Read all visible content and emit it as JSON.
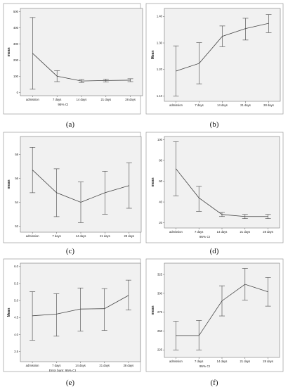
{
  "chart_data": [
    {
      "type": "line",
      "panel_label": "(a)",
      "x": [
        "admission",
        "7 days",
        "14 days",
        "21 days",
        "28 days"
      ],
      "series": [
        {
          "values": [
            242,
            101,
            71,
            74,
            76
          ],
          "ci_lower": [
            20,
            67,
            62,
            65,
            67
          ],
          "ci_upper": [
            464,
            135,
            80,
            83,
            85
          ]
        }
      ],
      "xlabel": "95% CI",
      "ylabel": "mean",
      "ylim": [
        -20,
        520
      ],
      "yticks": [
        0,
        100,
        200,
        300,
        400,
        500
      ],
      "ytick_labels": [
        "0",
        "100",
        "200",
        "300",
        "400",
        "500"
      ],
      "colors": {
        "line": "#444444",
        "plot_bg": "#f1f1f1"
      }
    },
    {
      "type": "line",
      "panel_label": "(b)",
      "x": [
        "admission",
        "7 days",
        "14 days",
        "21 days",
        "28 days"
      ],
      "series": [
        {
          "values": [
            1.194,
            1.223,
            1.325,
            1.354,
            1.374
          ],
          "ci_lower": [
            1.1,
            1.146,
            1.286,
            1.311,
            1.339
          ],
          "ci_upper": [
            1.289,
            1.301,
            1.364,
            1.393,
            1.407
          ]
        }
      ],
      "xlabel": "",
      "ylabel": "Mean",
      "ylim": [
        1.08,
        1.43
      ],
      "yticks": [
        1.1,
        1.2,
        1.3,
        1.4
      ],
      "ytick_labels": [
        "1.10",
        "1.20",
        "1.30",
        "1.40"
      ],
      "colors": {
        "line": "#444444",
        "plot_bg": "#f1f1f1"
      }
    },
    {
      "type": "line",
      "panel_label": "(c)",
      "x": [
        "admission",
        "7 days",
        "14 days",
        "21 days",
        "28 days"
      ],
      "series": [
        {
          "values": [
            56.7,
            54.8,
            54.0,
            54.8,
            55.4
          ],
          "ci_lower": [
            54.8,
            52.8,
            52.3,
            53.0,
            53.5
          ],
          "ci_upper": [
            58.6,
            56.8,
            55.7,
            56.6,
            57.3
          ]
        }
      ],
      "xlabel": "",
      "ylabel": "mean",
      "ylim": [
        51.5,
        59.5
      ],
      "yticks": [
        52,
        54,
        56,
        58
      ],
      "ytick_labels": [
        "52",
        "54",
        "56",
        "58"
      ],
      "colors": {
        "line": "#444444",
        "plot_bg": "#f1f1f1"
      }
    },
    {
      "type": "line",
      "panel_label": "(d)",
      "x": [
        "admission",
        "7 days",
        "14 days",
        "21 days",
        "28 days"
      ],
      "series": [
        {
          "values": [
            72,
            44,
            28,
            26,
            26
          ],
          "ci_lower": [
            46,
            31,
            26,
            24,
            24
          ],
          "ci_upper": [
            98,
            55,
            30,
            28,
            28
          ]
        }
      ],
      "xlabel": "95% CI",
      "ylabel": "mean",
      "ylim": [
        15,
        103
      ],
      "yticks": [
        20,
        40,
        60,
        80,
        100
      ],
      "ytick_labels": [
        "20",
        "40",
        "60",
        "80",
        "100"
      ],
      "colors": {
        "line": "#444444",
        "plot_bg": "#f1f1f1"
      }
    },
    {
      "type": "line",
      "panel_label": "(e)",
      "x": [
        "admission",
        "7 days",
        "14 days",
        "21 days",
        "28 days"
      ],
      "series": [
        {
          "values": [
            4.55,
            4.6,
            4.75,
            4.76,
            5.15
          ],
          "ci_lower": [
            3.83,
            3.95,
            4.1,
            4.12,
            4.72
          ],
          "ci_upper": [
            5.26,
            5.2,
            5.37,
            5.35,
            5.6
          ]
        }
      ],
      "xlabel": "Error bars: 95% CI",
      "ylabel": "Mean",
      "ylim": [
        3.2,
        6.1
      ],
      "yticks": [
        3.5,
        4.0,
        4.5,
        5.0,
        5.5,
        6.0
      ],
      "ytick_labels": [
        "3.5",
        "4.0",
        "4.5",
        "5.0",
        "5.5",
        "6.0"
      ],
      "colors": {
        "line": "#444444",
        "plot_bg": "#f1f1f1"
      }
    },
    {
      "type": "line",
      "panel_label": "(f)",
      "x": [
        "admission",
        "7 days",
        "14 days",
        "21 days",
        "28 days"
      ],
      "series": [
        {
          "values": [
            244,
            244,
            290,
            312,
            302
          ],
          "ci_lower": [
            225,
            225,
            270,
            291,
            283
          ],
          "ci_upper": [
            263,
            264,
            310,
            333,
            321
          ]
        }
      ],
      "xlabel": "95% CI",
      "ylabel": "mean",
      "ylim": [
        215,
        340
      ],
      "yticks": [
        225,
        250,
        275,
        300,
        325
      ],
      "ytick_labels": [
        "225",
        "250",
        "275",
        "300",
        "325"
      ],
      "colors": {
        "line": "#444444",
        "plot_bg": "#f1f1f1"
      }
    }
  ]
}
